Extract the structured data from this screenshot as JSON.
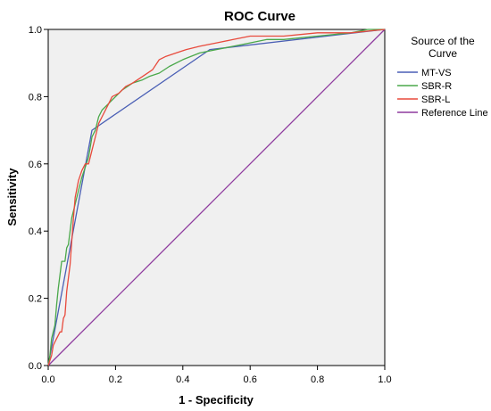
{
  "chart_data": {
    "type": "line",
    "title": "ROC Curve",
    "xlabel": "1 - Specificity",
    "ylabel": "Sensitivity",
    "xlim": [
      0,
      1
    ],
    "ylim": [
      0,
      1
    ],
    "x_ticks": [
      "0.0",
      "0.2",
      "0.4",
      "0.6",
      "0.8",
      "1.0"
    ],
    "y_ticks": [
      "0.0",
      "0.2",
      "0.4",
      "0.6",
      "0.8",
      "1.0"
    ],
    "grid": false,
    "legend": {
      "title": "Source of the Curve",
      "position": "right"
    },
    "series": [
      {
        "name": "MT-VS",
        "color": "#4a5fb5",
        "points": [
          [
            0,
            0
          ],
          [
            0.13,
            0.7
          ],
          [
            0.48,
            0.94
          ],
          [
            1,
            1
          ]
        ]
      },
      {
        "name": "SBR-R",
        "color": "#4aa84a",
        "points": [
          [
            0,
            0
          ],
          [
            0.005,
            0.03
          ],
          [
            0.01,
            0.08
          ],
          [
            0.02,
            0.12
          ],
          [
            0.025,
            0.18
          ],
          [
            0.03,
            0.23
          ],
          [
            0.035,
            0.27
          ],
          [
            0.04,
            0.31
          ],
          [
            0.05,
            0.31
          ],
          [
            0.055,
            0.35
          ],
          [
            0.06,
            0.36
          ],
          [
            0.065,
            0.4
          ],
          [
            0.07,
            0.44
          ],
          [
            0.08,
            0.48
          ],
          [
            0.09,
            0.52
          ],
          [
            0.1,
            0.56
          ],
          [
            0.11,
            0.59
          ],
          [
            0.12,
            0.62
          ],
          [
            0.13,
            0.68
          ],
          [
            0.14,
            0.7
          ],
          [
            0.15,
            0.74
          ],
          [
            0.16,
            0.76
          ],
          [
            0.18,
            0.78
          ],
          [
            0.2,
            0.8
          ],
          [
            0.22,
            0.82
          ],
          [
            0.25,
            0.84
          ],
          [
            0.28,
            0.85
          ],
          [
            0.3,
            0.86
          ],
          [
            0.33,
            0.87
          ],
          [
            0.36,
            0.89
          ],
          [
            0.4,
            0.91
          ],
          [
            0.45,
            0.93
          ],
          [
            0.5,
            0.94
          ],
          [
            0.55,
            0.95
          ],
          [
            0.6,
            0.96
          ],
          [
            0.65,
            0.97
          ],
          [
            0.7,
            0.97
          ],
          [
            0.8,
            0.98
          ],
          [
            0.9,
            0.99
          ],
          [
            0.95,
            1.0
          ],
          [
            1,
            1
          ]
        ]
      },
      {
        "name": "SBR-L",
        "color": "#e84a3c",
        "points": [
          [
            0,
            0
          ],
          [
            0.01,
            0.03
          ],
          [
            0.015,
            0.06
          ],
          [
            0.02,
            0.07
          ],
          [
            0.025,
            0.08
          ],
          [
            0.03,
            0.09
          ],
          [
            0.035,
            0.1
          ],
          [
            0.04,
            0.1
          ],
          [
            0.045,
            0.14
          ],
          [
            0.05,
            0.15
          ],
          [
            0.055,
            0.22
          ],
          [
            0.06,
            0.26
          ],
          [
            0.065,
            0.3
          ],
          [
            0.07,
            0.37
          ],
          [
            0.075,
            0.44
          ],
          [
            0.08,
            0.5
          ],
          [
            0.09,
            0.55
          ],
          [
            0.1,
            0.58
          ],
          [
            0.11,
            0.6
          ],
          [
            0.12,
            0.6
          ],
          [
            0.13,
            0.64
          ],
          [
            0.14,
            0.68
          ],
          [
            0.15,
            0.72
          ],
          [
            0.16,
            0.74
          ],
          [
            0.18,
            0.78
          ],
          [
            0.19,
            0.8
          ],
          [
            0.21,
            0.81
          ],
          [
            0.23,
            0.83
          ],
          [
            0.25,
            0.84
          ],
          [
            0.28,
            0.86
          ],
          [
            0.31,
            0.88
          ],
          [
            0.33,
            0.91
          ],
          [
            0.35,
            0.92
          ],
          [
            0.38,
            0.93
          ],
          [
            0.41,
            0.94
          ],
          [
            0.45,
            0.95
          ],
          [
            0.5,
            0.96
          ],
          [
            0.55,
            0.97
          ],
          [
            0.6,
            0.98
          ],
          [
            0.7,
            0.98
          ],
          [
            0.8,
            0.99
          ],
          [
            0.9,
            0.99
          ],
          [
            1,
            1
          ]
        ]
      },
      {
        "name": "Reference Line",
        "color": "#8e3a9e",
        "points": [
          [
            0,
            0
          ],
          [
            1,
            1
          ]
        ]
      }
    ]
  }
}
